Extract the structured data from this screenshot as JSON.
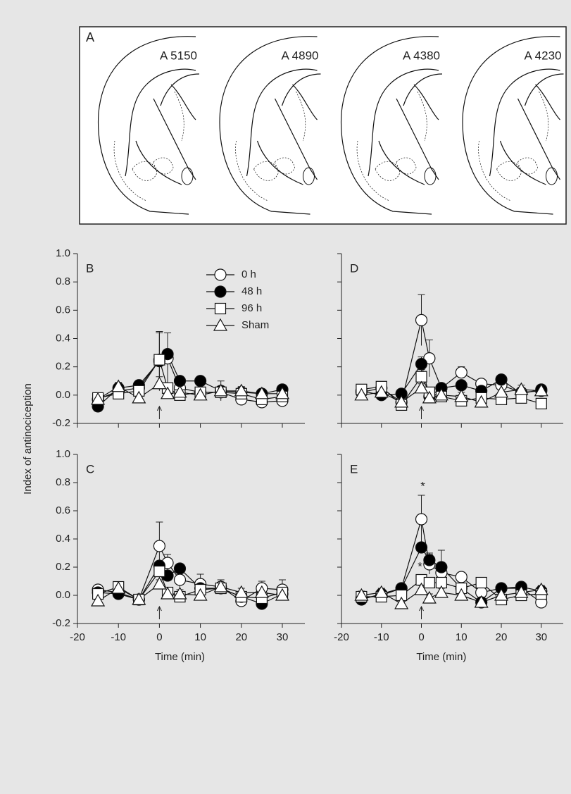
{
  "figure_a": {
    "label": "A",
    "sections": [
      "A 5150",
      "A 4890",
      "A 4380",
      "A 4230"
    ]
  },
  "chart_data": [
    {
      "type": "line",
      "label": "B",
      "ylabel": "Index of antinociception",
      "legend": "top-right",
      "xlim": [
        -20,
        35.5
      ],
      "xticks": [
        -20,
        -10,
        0,
        10,
        20,
        30
      ],
      "xtick_labels": false,
      "ylim": [
        -0.2,
        1.0
      ],
      "yticks": [
        -0.2,
        {
          "value": 0,
          "label": "0.0"
        },
        0.2,
        0.4,
        0.6,
        0.8,
        {
          "value": 1,
          "label": "1.0"
        }
      ],
      "ytick_labels": true,
      "x": [
        -15,
        -10,
        -5,
        0,
        2,
        5,
        10,
        15,
        20,
        25,
        30
      ],
      "series": [
        {
          "name": "0 h",
          "marker": "circle",
          "color": "#ffffff",
          "values": [
            -0.03,
            0.03,
            0.05,
            0.25,
            0.26,
            0.05,
            0.02,
            0.02,
            -0.03,
            -0.05,
            -0.04
          ],
          "errors": [
            0.03,
            0.03,
            0.03,
            0.19,
            0.18,
            0.04,
            0.03,
            0.03,
            0.03,
            0.03,
            0.04
          ]
        },
        {
          "name": "48 h",
          "marker": "circle",
          "color": "#000000",
          "values": [
            -0.08,
            0.05,
            0.07,
            0.24,
            0.29,
            0.1,
            0.1,
            0.03,
            0.02,
            0.01,
            0.04
          ],
          "errors": [
            0.03,
            0.03,
            0.03,
            0.2,
            0.03,
            0.03,
            0.03,
            0.03,
            0.03,
            0.03,
            0.03
          ]
        },
        {
          "name": "96 h",
          "marker": "square",
          "color": "#ffffff",
          "values": [
            -0.02,
            0.01,
            0.03,
            0.25,
            0.05,
            0.0,
            0.02,
            0.02,
            0.01,
            -0.03,
            -0.01
          ],
          "errors": [
            0.03,
            0.03,
            0.03,
            0.2,
            0.03,
            0.03,
            0.03,
            0.03,
            0.03,
            0.03,
            0.03
          ]
        },
        {
          "name": "Sham",
          "marker": "triangle",
          "color": "#ffffff",
          "values": [
            -0.03,
            0.06,
            -0.02,
            0.08,
            0.01,
            0.02,
            0.0,
            0.03,
            0.03,
            0.01,
            0.01
          ],
          "errors": [
            0.03,
            0.03,
            0.03,
            0.05,
            0.03,
            0.03,
            0.03,
            0.07,
            0.03,
            0.03,
            0.03
          ]
        }
      ]
    },
    {
      "type": "line",
      "label": "C",
      "xlabel": "Time (min)",
      "xlim": [
        -20,
        35.5
      ],
      "xticks": [
        -20,
        -10,
        0,
        10,
        20,
        30
      ],
      "xtick_labels": true,
      "ylim": [
        -0.2,
        1.0
      ],
      "yticks": [
        -0.2,
        {
          "value": 0,
          "label": "0.0"
        },
        0.2,
        0.4,
        0.6,
        0.8,
        {
          "value": 1,
          "label": "1.0"
        }
      ],
      "ytick_labels": true,
      "x": [
        -15,
        -10,
        -5,
        0,
        2,
        5,
        10,
        15,
        20,
        25,
        30
      ],
      "series": [
        {
          "marker": "circle",
          "color": "#ffffff",
          "values": [
            0.04,
            0.02,
            -0.03,
            0.35,
            0.23,
            0.11,
            0.08,
            0.06,
            -0.04,
            0.05,
            0.04
          ],
          "errors": [
            0.03,
            0.03,
            0.03,
            0.17,
            0.06,
            0.05,
            0.07,
            0.03,
            0.03,
            0.05,
            0.07
          ]
        },
        {
          "marker": "circle",
          "color": "#000000",
          "values": [
            0.02,
            0.01,
            -0.03,
            0.21,
            0.14,
            0.19,
            0.05,
            0.05,
            -0.01,
            -0.06,
            0.01
          ],
          "errors": [
            0.03,
            0.03,
            0.03,
            0.03,
            0.03,
            0.03,
            0.03,
            0.03,
            0.03,
            0.03,
            0.03
          ]
        },
        {
          "marker": "square",
          "color": "#ffffff",
          "values": [
            0.01,
            0.06,
            -0.03,
            0.17,
            0.02,
            -0.01,
            0.04,
            0.05,
            -0.01,
            -0.02,
            0.02
          ],
          "errors": [
            0.03,
            0.03,
            0.03,
            0.05,
            0.03,
            0.03,
            0.03,
            0.03,
            0.03,
            0.03,
            0.03
          ]
        },
        {
          "marker": "triangle",
          "color": "#ffffff",
          "values": [
            -0.04,
            0.05,
            -0.03,
            0.08,
            0.01,
            0.01,
            0.0,
            0.06,
            0.02,
            0.02,
            0.0
          ],
          "errors": [
            0.03,
            0.03,
            0.03,
            0.03,
            0.03,
            0.03,
            0.03,
            0.05,
            0.03,
            0.03,
            0.03
          ]
        }
      ]
    },
    {
      "type": "line",
      "label": "D",
      "xlim": [
        -20,
        35.5
      ],
      "xticks": [
        -20,
        -10,
        0,
        10,
        20,
        30
      ],
      "xtick_labels": false,
      "ylim": [
        -0.2,
        1.0
      ],
      "yticks": [
        -0.2,
        0,
        0.2,
        0.4,
        0.6,
        0.8,
        1
      ],
      "ytick_labels": false,
      "x": [
        -15,
        -10,
        -5,
        0,
        2,
        5,
        10,
        15,
        20,
        25,
        30
      ],
      "series": [
        {
          "marker": "circle",
          "color": "#ffffff",
          "values": [
            0.02,
            0.05,
            -0.05,
            0.53,
            0.26,
            0.05,
            0.16,
            0.08,
            0.07,
            0.02,
            0.03
          ],
          "errors": [
            0.03,
            0.03,
            0.03,
            0.18,
            0.13,
            0.03,
            0.04,
            0.03,
            0.03,
            0.03,
            0.03
          ]
        },
        {
          "marker": "circle",
          "color": "#000000",
          "values": [
            0.03,
            0.0,
            0.01,
            0.22,
            -0.01,
            0.05,
            0.07,
            0.03,
            0.11,
            0.01,
            0.04
          ],
          "errors": [
            0.03,
            0.03,
            0.03,
            0.05,
            0.03,
            0.03,
            0.03,
            0.03,
            0.03,
            0.03,
            0.03
          ]
        },
        {
          "marker": "square",
          "color": "#ffffff",
          "values": [
            0.04,
            0.06,
            -0.07,
            0.13,
            0.02,
            -0.01,
            -0.04,
            -0.02,
            -0.03,
            -0.02,
            -0.06
          ],
          "errors": [
            0.03,
            0.03,
            0.03,
            0.05,
            0.03,
            0.03,
            0.03,
            0.03,
            0.03,
            0.03,
            0.03
          ]
        },
        {
          "marker": "triangle",
          "color": "#ffffff",
          "values": [
            0.0,
            0.02,
            -0.05,
            0.05,
            -0.02,
            0.0,
            -0.01,
            -0.05,
            0.02,
            0.04,
            0.03
          ],
          "errors": [
            0.03,
            0.03,
            0.03,
            0.03,
            0.03,
            0.03,
            0.03,
            0.03,
            0.03,
            0.03,
            0.03
          ]
        }
      ]
    },
    {
      "type": "line",
      "label": "E",
      "xlabel": "Time (min)",
      "annotations": [
        "*",
        "*"
      ],
      "xlim": [
        -20,
        35.5
      ],
      "xticks": [
        -20,
        -10,
        0,
        10,
        20,
        30
      ],
      "xtick_labels": true,
      "ylim": [
        -0.2,
        1.0
      ],
      "yticks": [
        -0.2,
        0,
        0.2,
        0.4,
        0.6,
        0.8,
        1
      ],
      "ytick_labels": false,
      "x": [
        -15,
        -10,
        -5,
        0,
        2,
        5,
        10,
        15,
        20,
        25,
        30
      ],
      "series": [
        {
          "marker": "circle",
          "color": "#ffffff",
          "values": [
            -0.02,
            0.0,
            0.05,
            0.54,
            0.22,
            0.16,
            0.13,
            0.02,
            0.05,
            0.05,
            -0.05
          ],
          "errors": [
            0.03,
            0.03,
            0.03,
            0.17,
            0.07,
            0.06,
            0.03,
            0.03,
            0.03,
            0.03,
            0.03
          ]
        },
        {
          "marker": "circle",
          "color": "#000000",
          "values": [
            -0.03,
            0.01,
            0.05,
            0.34,
            0.25,
            0.2,
            0.05,
            -0.05,
            0.05,
            0.06,
            0.03
          ],
          "errors": [
            0.03,
            0.03,
            0.03,
            0.03,
            0.05,
            0.12,
            0.03,
            0.03,
            0.03,
            0.03,
            0.03
          ]
        },
        {
          "marker": "square",
          "color": "#ffffff",
          "values": [
            -0.01,
            -0.01,
            0.0,
            0.11,
            0.09,
            0.09,
            0.05,
            0.09,
            -0.03,
            0.0,
            0.01
          ],
          "errors": [
            0.03,
            0.03,
            0.03,
            0.03,
            0.03,
            0.03,
            0.03,
            0.03,
            0.03,
            0.03,
            0.03
          ]
        },
        {
          "marker": "triangle",
          "color": "#ffffff",
          "values": [
            0.0,
            0.02,
            -0.06,
            0.04,
            -0.02,
            0.02,
            0.0,
            -0.05,
            0.0,
            0.02,
            0.04
          ],
          "errors": [
            0.03,
            0.03,
            0.03,
            0.03,
            0.03,
            0.03,
            0.03,
            0.03,
            0.03,
            0.03,
            0.03
          ]
        }
      ]
    }
  ]
}
